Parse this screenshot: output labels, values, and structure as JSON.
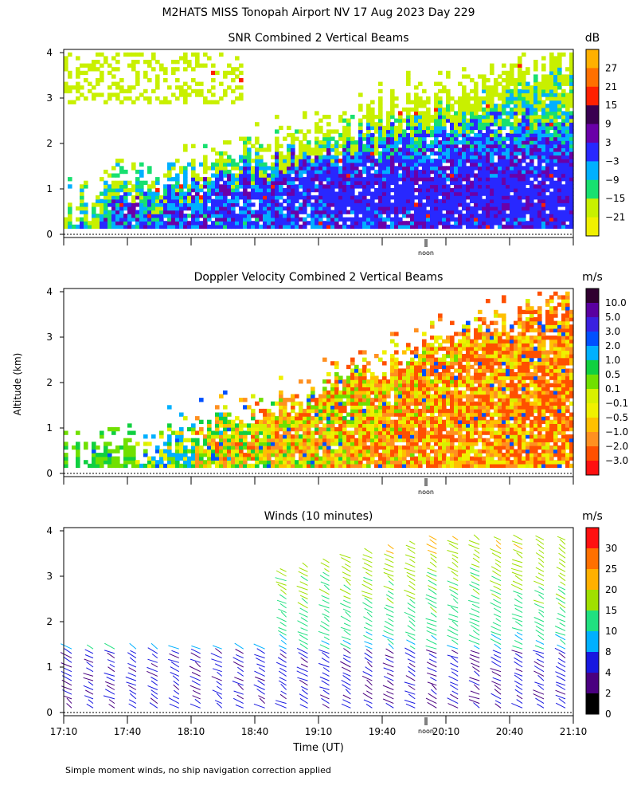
{
  "page": {
    "title": "M2HATS MISS Tonopah Airport NV  17 Aug 2023 Day 229",
    "shared_ylabel": "Altitude (km)",
    "xlabel": "Time (UT)",
    "noon_label": "noon",
    "footnote": "Simple moment winds, no ship navigation correction applied"
  },
  "chart_data": [
    {
      "type": "heatmap",
      "title": "SNR Combined 2 Vertical Beams",
      "units": "dB",
      "yticks": [
        "0",
        "1",
        "2",
        "3",
        "4"
      ],
      "ylim": [
        0,
        4
      ],
      "colorbar": {
        "labels": [
          "27",
          "21",
          "15",
          "9",
          "3",
          "−3",
          "−9",
          "−15",
          "−21"
        ],
        "colors": [
          "#ffb000",
          "#ff7000",
          "#ff2000",
          "#3a0050",
          "#6a00a8",
          "#2828ff",
          "#00b0ff",
          "#18e070",
          "#c8f000",
          "#f0f000"
        ]
      }
    },
    {
      "type": "heatmap",
      "title": "Doppler Velocity Combined 2 Vertical Beams",
      "units": "m/s",
      "yticks": [
        "0",
        "1",
        "2",
        "3",
        "4"
      ],
      "ylim": [
        0,
        4
      ],
      "colorbar": {
        "labels": [
          "10.0",
          "5.0",
          "3.0",
          "2.0",
          "1.0",
          "0.5",
          "0.1",
          "−0.1",
          "−0.5",
          "−1.0",
          "−2.0",
          "−3.0"
        ],
        "colors": [
          "#300030",
          "#5a00a0",
          "#3a20e0",
          "#0050ff",
          "#00b0ff",
          "#10d040",
          "#70e000",
          "#d8f000",
          "#f0f000",
          "#ffc000",
          "#ff9020",
          "#ff5000",
          "#ff1010"
        ]
      }
    },
    {
      "type": "scatter",
      "title": "Winds (10 minutes)",
      "units": "m/s",
      "yticks": [
        "0",
        "1",
        "2",
        "3",
        "4"
      ],
      "ylim": [
        0,
        4
      ],
      "xticks": [
        "17:10",
        "17:40",
        "18:10",
        "18:40",
        "19:10",
        "19:40",
        "20:10",
        "20:40",
        "21:10"
      ],
      "xlim_hours": [
        17.1667,
        21.1667
      ],
      "colorbar": {
        "labels": [
          "30",
          "25",
          "20",
          "15",
          "10",
          "8",
          "4",
          "2",
          "0"
        ],
        "colors": [
          "#ff1010",
          "#ff7000",
          "#ffb000",
          "#a0e000",
          "#20e080",
          "#00b0ff",
          "#1818e0",
          "#4a0080",
          "#000000"
        ]
      }
    }
  ]
}
